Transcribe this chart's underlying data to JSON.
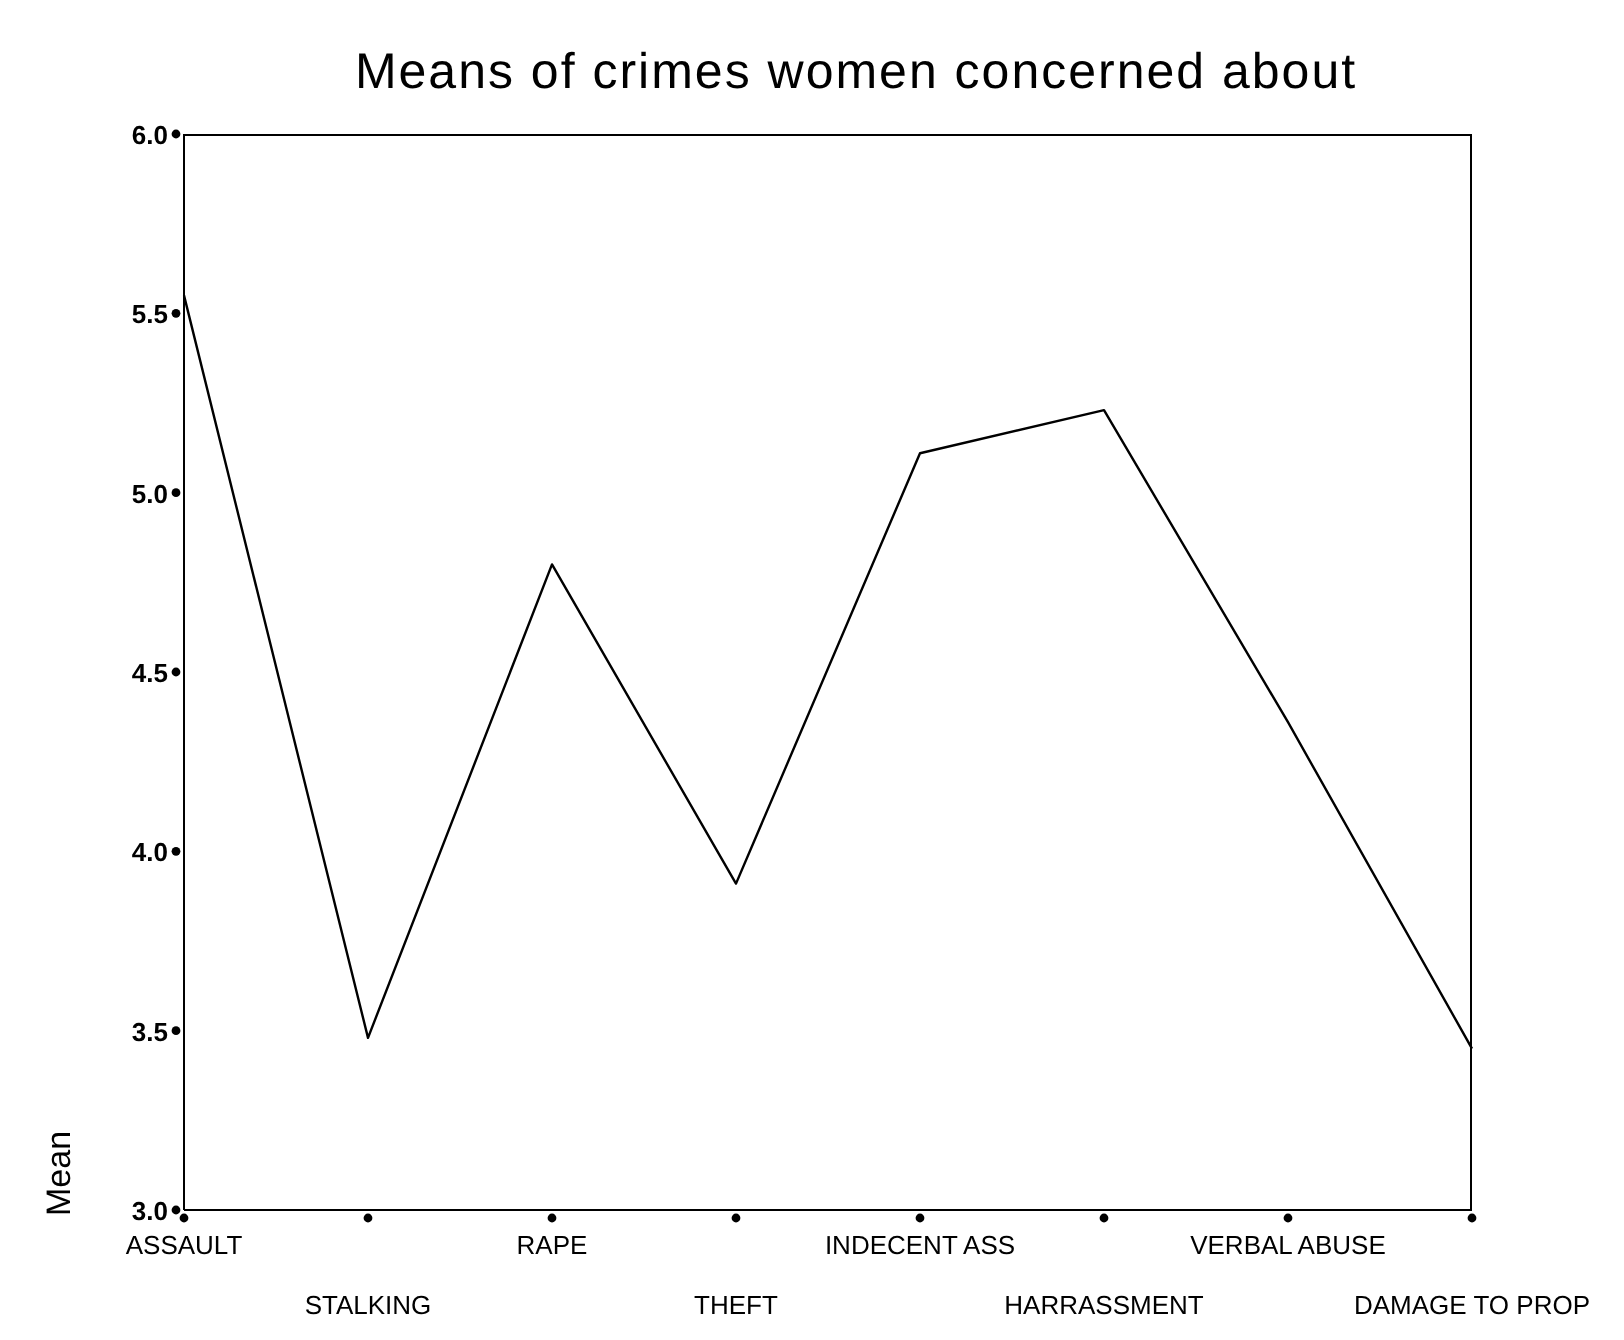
{
  "chart_data": {
    "type": "line",
    "title": "Means of crimes women concerned about",
    "ylabel": "Mean",
    "categories": [
      "ASSAULT",
      "STALKING",
      "RAPE",
      "THEFT",
      "INDECENT ASS",
      "HARRASSMENT",
      "VERBAL ABUSE",
      "DAMAGE TO PROP"
    ],
    "series": [
      {
        "color": "#000000",
        "values": [
          5.55,
          3.48,
          4.8,
          3.91,
          5.11,
          5.23,
          4.36,
          3.45
        ]
      }
    ],
    "ylim": [
      3.0,
      6.0
    ],
    "yticks": [
      {
        "value": 3.0,
        "label": "3.0"
      },
      {
        "value": 3.5,
        "label": "3.5"
      },
      {
        "value": 4.0,
        "label": "4.0"
      },
      {
        "value": 4.5,
        "label": "4.5"
      },
      {
        "value": 5.0,
        "label": "5.0"
      },
      {
        "value": 5.5,
        "label": "5.5"
      },
      {
        "value": 6.0,
        "label": "6.0"
      }
    ],
    "grid": false,
    "legend": false,
    "marker": "none",
    "line_style": "solid"
  }
}
